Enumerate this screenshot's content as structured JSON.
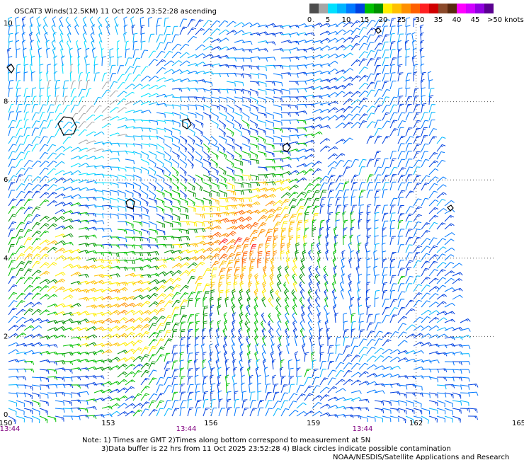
{
  "header": {
    "title": "OSCAT3 Winds(12.5KM) 11 Oct 2025 23:52:28 ascending"
  },
  "scale": {
    "colors": [
      "#4d4d4d",
      "#a6a6a6",
      "#00e0ff",
      "#00b4ff",
      "#0078ff",
      "#0040e0",
      "#00c000",
      "#009000",
      "#ffee00",
      "#ffc000",
      "#ff9000",
      "#ff6000",
      "#ff2020",
      "#d00000",
      "#8b4a2b",
      "#5a2a10",
      "#ff00ff",
      "#d000ff",
      "#9000e0",
      "#5a0090"
    ],
    "ticks": [
      0,
      5,
      10,
      15,
      20,
      25,
      30,
      35,
      40,
      45,
      {
        "value": 50,
        "label": ">50 knots"
      }
    ]
  },
  "map": {
    "lon_ticks": [
      150,
      153,
      156,
      159,
      162,
      165
    ],
    "lat_ticks": [
      10,
      8,
      6,
      4,
      2,
      0
    ],
    "time_labels": [
      "13:44",
      "13:44",
      "13:44"
    ]
  },
  "notes": [
    "Note: 1) Times are GMT 2)Times along bottom correspond to measurement at 5N",
    "3)Data buffer is 22 hrs from 11 Oct 2025 23:52:28 4) Black circles indicate possible contamination",
    "NOAA/NESDIS/Satellite Applications and Research"
  ]
}
